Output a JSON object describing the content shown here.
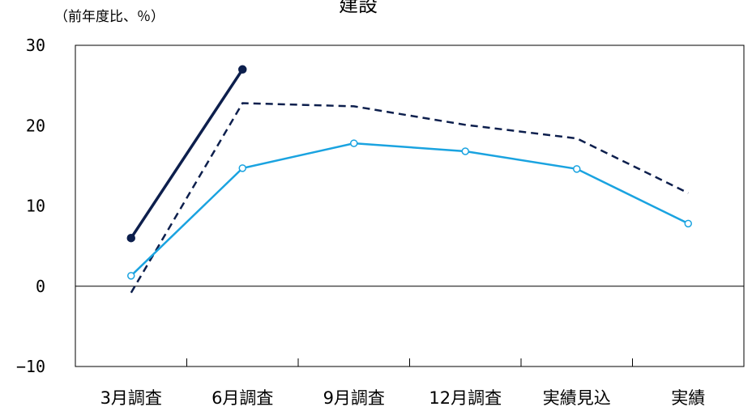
{
  "chart_data": {
    "type": "line",
    "title": "建設",
    "unit_label": "（前年度比、％）",
    "xlabel": "",
    "ylabel": "",
    "categories": [
      "3月調査",
      "6月調査",
      "9月調査",
      "12月調査",
      "実績見込",
      "実績"
    ],
    "ylim": [
      -10,
      30
    ],
    "yticks": [
      "30",
      "20",
      "10",
      "0",
      "−10"
    ],
    "grid": false,
    "series": [
      {
        "name": "",
        "style": "solid-filled-markers",
        "color": "#0d1f4d",
        "values": [
          6.0,
          27.0,
          null,
          null,
          null,
          null
        ]
      },
      {
        "name": "",
        "style": "dashed",
        "color": "#0d1f4d",
        "values": [
          -0.8,
          22.8,
          22.4,
          20.1,
          18.4,
          11.6
        ]
      },
      {
        "name": "",
        "style": "solid-open-markers",
        "color": "#1aa3e0",
        "values": [
          1.3,
          14.7,
          17.8,
          16.8,
          14.6,
          7.8
        ]
      }
    ]
  }
}
